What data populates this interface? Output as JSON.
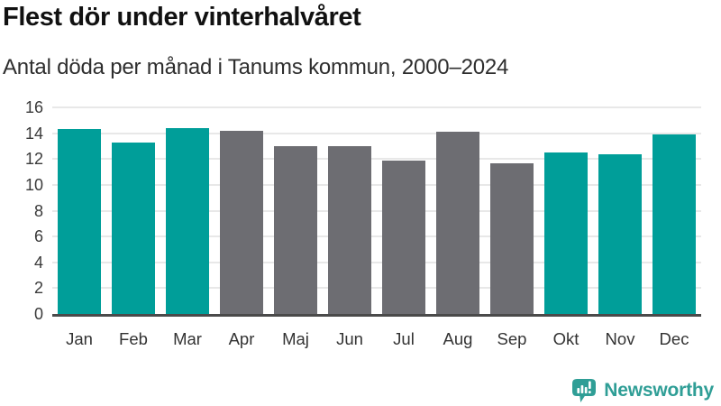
{
  "header": {
    "title": "Flest dör under vinterhalvåret",
    "subtitle": "Antal döda per månad i Tanums kommun, 2000–2024"
  },
  "chart_data": {
    "type": "bar",
    "title": "Flest dör under vinterhalvåret",
    "subtitle": "Antal döda per månad i Tanums kommun, 2000–2024",
    "categories": [
      "Jan",
      "Feb",
      "Mar",
      "Apr",
      "Maj",
      "Jun",
      "Jul",
      "Aug",
      "Sep",
      "Okt",
      "Nov",
      "Dec"
    ],
    "values": [
      14.3,
      13.3,
      14.4,
      14.2,
      13.0,
      13.0,
      11.9,
      14.1,
      11.7,
      12.5,
      12.4,
      13.9
    ],
    "bar_groups": [
      "winter",
      "winter",
      "winter",
      "summer",
      "summer",
      "summer",
      "summer",
      "summer",
      "summer",
      "winter",
      "winter",
      "winter"
    ],
    "group_colors": {
      "winter": "#009e99",
      "summer": "#6d6d72"
    },
    "xlabel": "",
    "ylabel": "",
    "ylim": [
      0,
      16
    ],
    "yticks": [
      0,
      2,
      4,
      6,
      8,
      10,
      12,
      14,
      16
    ],
    "grid": true,
    "legend_position": "none"
  },
  "footer": {
    "brand": "Newsworthy",
    "brand_color": "#2f9e96"
  },
  "colors": {
    "background": "#ffffff",
    "gridline": "#e8e8e8",
    "axis_line": "#4a4a4a",
    "tick_text": "#333333",
    "title_text": "#111111",
    "subtitle_text": "#2e2e2e"
  }
}
